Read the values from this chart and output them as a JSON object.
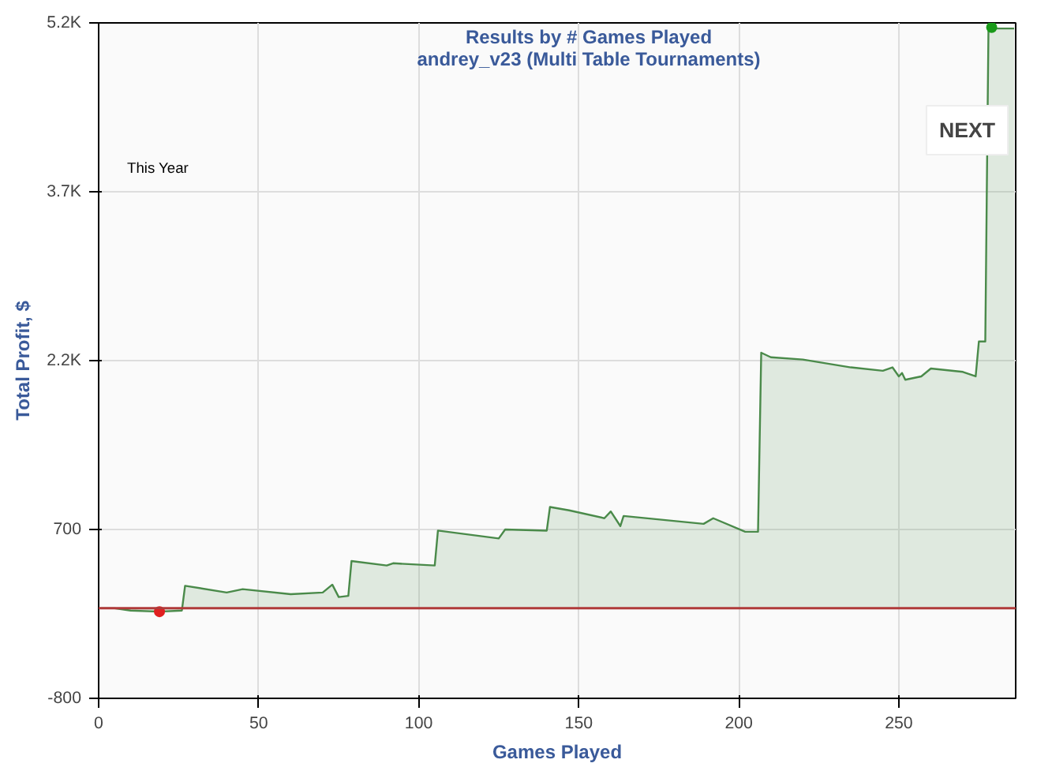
{
  "chart_data": {
    "type": "area",
    "title": "Results by # Games Played",
    "subtitle": "andrey_v23 (Multi Table Tournaments)",
    "xlabel": "Games Played",
    "ylabel": "Total Profit, $",
    "annotations": [
      "This Year",
      "NEXT"
    ],
    "x": [
      0,
      5,
      10,
      19,
      26,
      27,
      40,
      45,
      60,
      70,
      73,
      75,
      78,
      79,
      90,
      92,
      105,
      106,
      125,
      127,
      140,
      141,
      147,
      158,
      160,
      163,
      164,
      189,
      192,
      202,
      206,
      207,
      210,
      220,
      235,
      245,
      248,
      250,
      251,
      252,
      257,
      260,
      270,
      274,
      275,
      277,
      278,
      280,
      286
    ],
    "series": [
      {
        "color": "#4a8a4a",
        "values": [
          0,
          0,
          -20,
          -30,
          -20,
          200,
          140,
          170,
          125,
          140,
          210,
          100,
          110,
          420,
          380,
          400,
          380,
          690,
          620,
          700,
          690,
          900,
          870,
          800,
          860,
          730,
          820,
          750,
          800,
          680,
          680,
          2270,
          2230,
          2210,
          2140,
          2110,
          2140,
          2060,
          2090,
          2030,
          2060,
          2130,
          2100,
          2060,
          2370,
          2370,
          5160,
          5150,
          5150
        ]
      },
      {
        "type": "scatter",
        "marker": "circle",
        "x": [
          19
        ],
        "color": "#e02020",
        "values": [
          -30
        ]
      },
      {
        "type": "scatter",
        "marker": "circle",
        "x": [
          279
        ],
        "color": "#1a9a1a",
        "values": [
          5160
        ]
      }
    ],
    "xlim": [
      0,
      286.5
    ],
    "ylim": [
      -800,
      5200
    ],
    "xticks": [
      0,
      50,
      100,
      150,
      200,
      250
    ],
    "yticks": [
      -800,
      700,
      {
        "value": 2200,
        "label": "2.2K"
      },
      {
        "value": 3700,
        "label": "3.7K"
      },
      {
        "value": 5200,
        "label": "5.2K"
      }
    ],
    "ref_lines": [
      {
        "axis": "y",
        "value": 0,
        "color": "#b03a3a"
      }
    ],
    "grid": true
  }
}
